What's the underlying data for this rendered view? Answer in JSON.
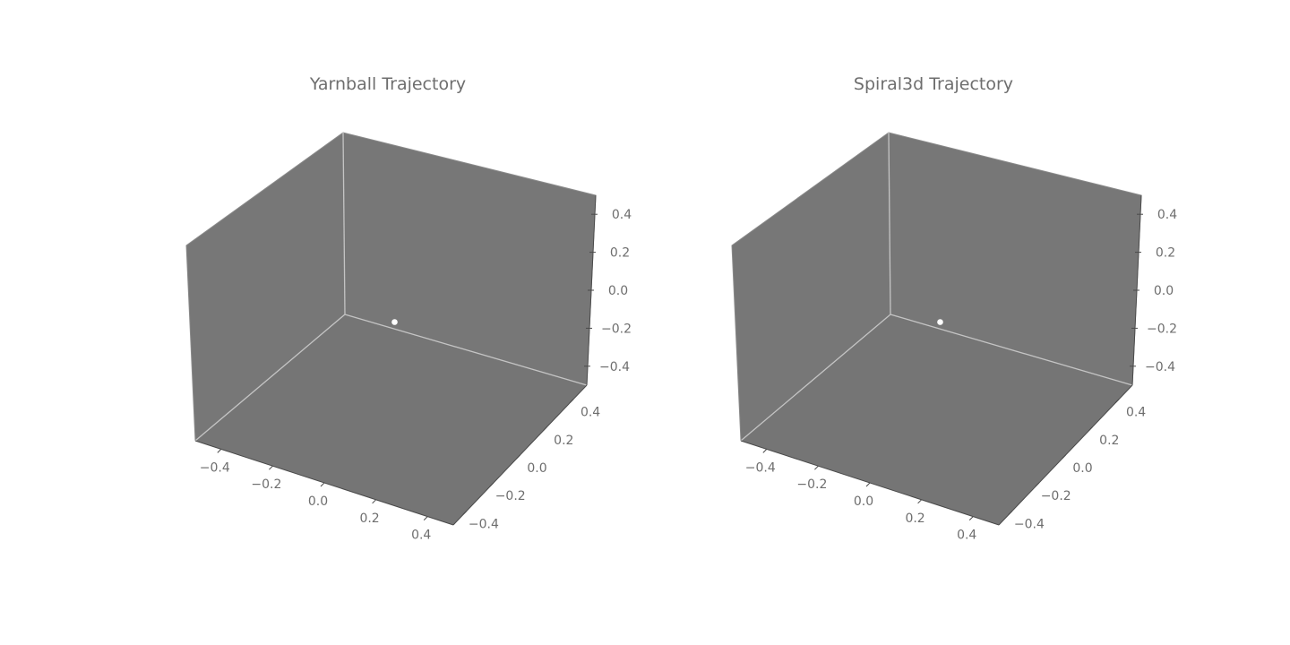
{
  "chart_data": [
    {
      "type": "scatter",
      "title": "Yarnball Trajectory",
      "xlabel": "",
      "ylabel": "",
      "zlabel": "",
      "xlim": [
        -0.5,
        0.5
      ],
      "ylim": [
        -0.5,
        0.5
      ],
      "zlim": [
        -0.5,
        0.5
      ],
      "x_ticks": [
        "−0.4",
        "−0.2",
        "0.0",
        "0.2",
        "0.4"
      ],
      "y_ticks": [
        "−0.4",
        "−0.2",
        "0.0",
        "0.2",
        "0.4"
      ],
      "z_ticks": [
        "−0.4",
        "−0.2",
        "0.0",
        "0.2",
        "0.4"
      ],
      "x_tick_values": [
        -0.4,
        -0.2,
        0.0,
        0.2,
        0.4
      ],
      "y_tick_values": [
        -0.4,
        -0.2,
        0.0,
        0.2,
        0.4
      ],
      "z_tick_values": [
        -0.4,
        -0.2,
        0.0,
        0.2,
        0.4
      ],
      "points": [
        {
          "x": 0.0,
          "y": 0.0,
          "z": 0.0
        }
      ],
      "pane_color": "#777777",
      "point_color": "#ffffff",
      "grid": false
    },
    {
      "type": "scatter",
      "title": "Spiral3d Trajectory",
      "xlabel": "",
      "ylabel": "",
      "zlabel": "",
      "xlim": [
        -0.5,
        0.5
      ],
      "ylim": [
        -0.5,
        0.5
      ],
      "zlim": [
        -0.5,
        0.5
      ],
      "x_ticks": [
        "−0.4",
        "−0.2",
        "0.0",
        "0.2",
        "0.4"
      ],
      "y_ticks": [
        "−0.4",
        "−0.2",
        "0.0",
        "0.2",
        "0.4"
      ],
      "z_ticks": [
        "−0.4",
        "−0.2",
        "0.0",
        "0.2",
        "0.4"
      ],
      "x_tick_values": [
        -0.4,
        -0.2,
        0.0,
        0.2,
        0.4
      ],
      "y_tick_values": [
        -0.4,
        -0.2,
        0.0,
        0.2,
        0.4
      ],
      "z_tick_values": [
        -0.4,
        -0.2,
        0.0,
        0.2,
        0.4
      ],
      "points": [
        {
          "x": 0.0,
          "y": 0.0,
          "z": 0.0
        }
      ],
      "pane_color": "#777777",
      "point_color": "#ffffff",
      "grid": false
    }
  ]
}
